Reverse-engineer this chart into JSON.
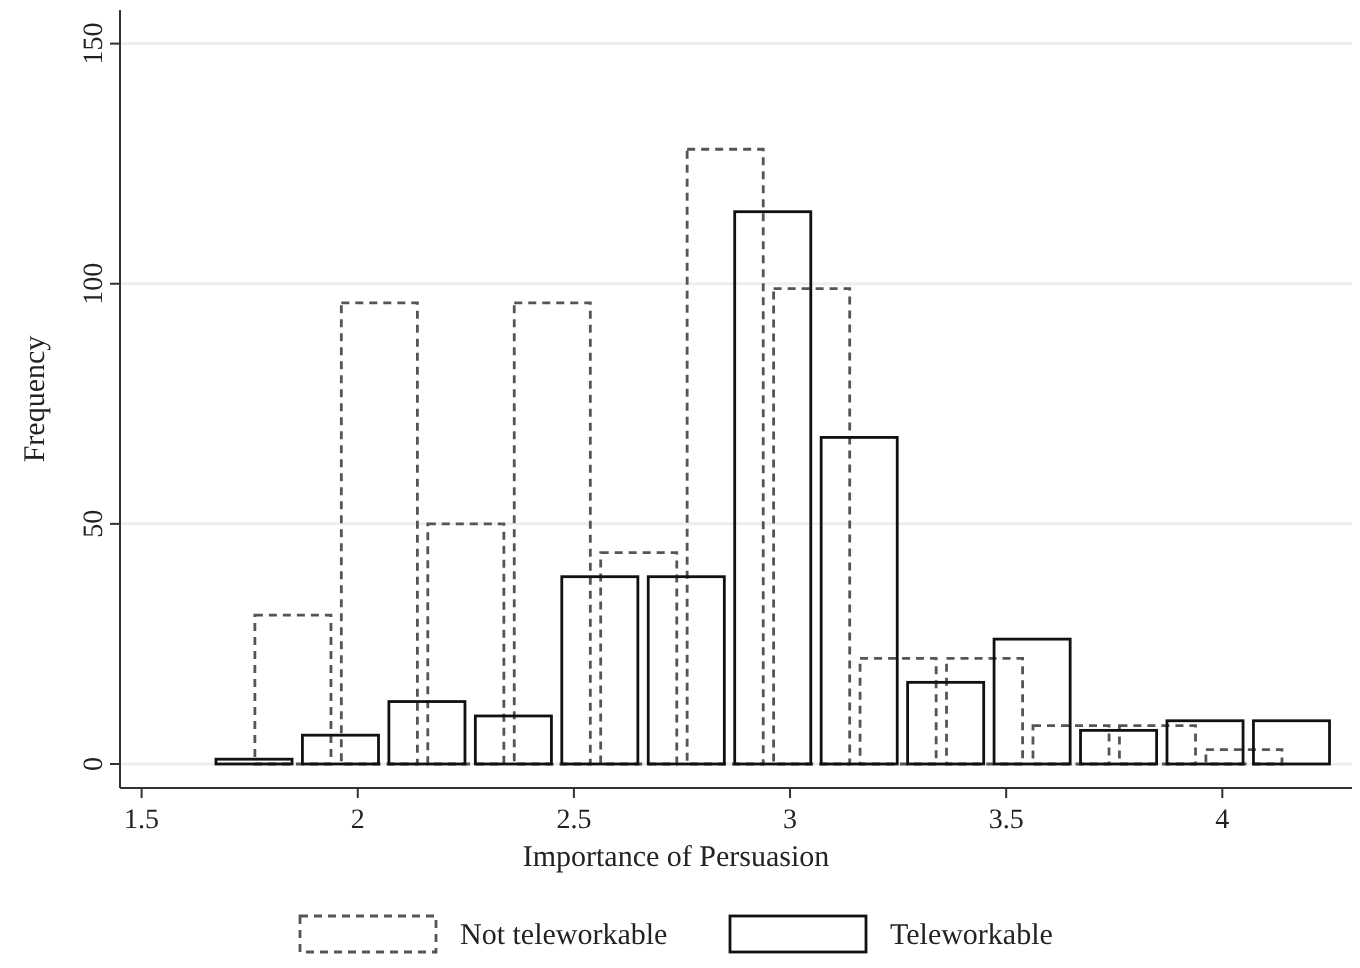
{
  "chart_data": {
    "type": "bar",
    "xlabel": "Importance of Persuasion",
    "ylabel": "Frequency",
    "xlim": [
      1.45,
      4.3
    ],
    "xticks": [
      1.5,
      2,
      2.5,
      3,
      3.5,
      4
    ],
    "ylim": [
      -5,
      157
    ],
    "yticks": [
      0,
      50,
      100,
      150
    ],
    "grid": "y",
    "legend": "bottom",
    "series": [
      {
        "name": "Not teleworkable",
        "color": "#555555",
        "line_style": "dashed",
        "x": [
          1.85,
          2.05,
          2.25,
          2.45,
          2.65,
          2.85,
          3.05,
          3.25,
          3.45,
          3.65,
          3.85,
          4.05
        ],
        "values": [
          31,
          96,
          50,
          96,
          44,
          128,
          99,
          22,
          22,
          8,
          8,
          3
        ]
      },
      {
        "name": "Teleworkable",
        "color": "#111111",
        "line_style": "solid",
        "x": [
          1.76,
          1.96,
          2.16,
          2.36,
          2.56,
          2.76,
          2.96,
          3.16,
          3.36,
          3.56,
          3.76,
          3.96,
          4.16
        ],
        "values": [
          1,
          6,
          13,
          10,
          39,
          39,
          115,
          68,
          17,
          26,
          7,
          9,
          9
        ]
      }
    ]
  }
}
